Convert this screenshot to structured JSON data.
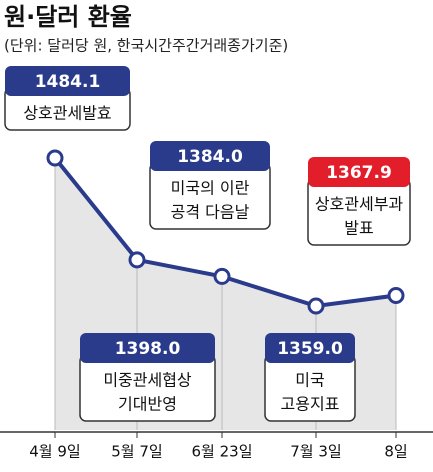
{
  "chart_data": {
    "type": "line",
    "title": "원·달러 환율",
    "subtitle": "(단위: 달러당 원, 한국시간주간거래종가기준)",
    "categories": [
      "4월 9일",
      "5월 7일",
      "6월 23일",
      "7월 3일",
      "8일"
    ],
    "series": [
      {
        "color": "#2a3b8c",
        "values": [
          1484.1,
          1398.0,
          1384.0,
          1359.0,
          1367.9
        ],
        "value_labels": [
          "1484.1",
          "1398.0",
          "1384.0",
          "1359.0",
          "1367.9"
        ]
      }
    ],
    "annotations": [
      [
        "상호관세발효"
      ],
      [
        "미중관세협상",
        "기대반영"
      ],
      [
        "미국의 이란",
        "공격 다음날"
      ],
      [
        "미국",
        "고용지표"
      ],
      [
        "상호관세부과",
        "발표"
      ]
    ],
    "annotation_colors": [
      "#2a3b8c",
      "#2a3b8c",
      "#2a3b8c",
      "#2a3b8c",
      "#e31e2b"
    ],
    "area_color": "#e6e6e6"
  }
}
